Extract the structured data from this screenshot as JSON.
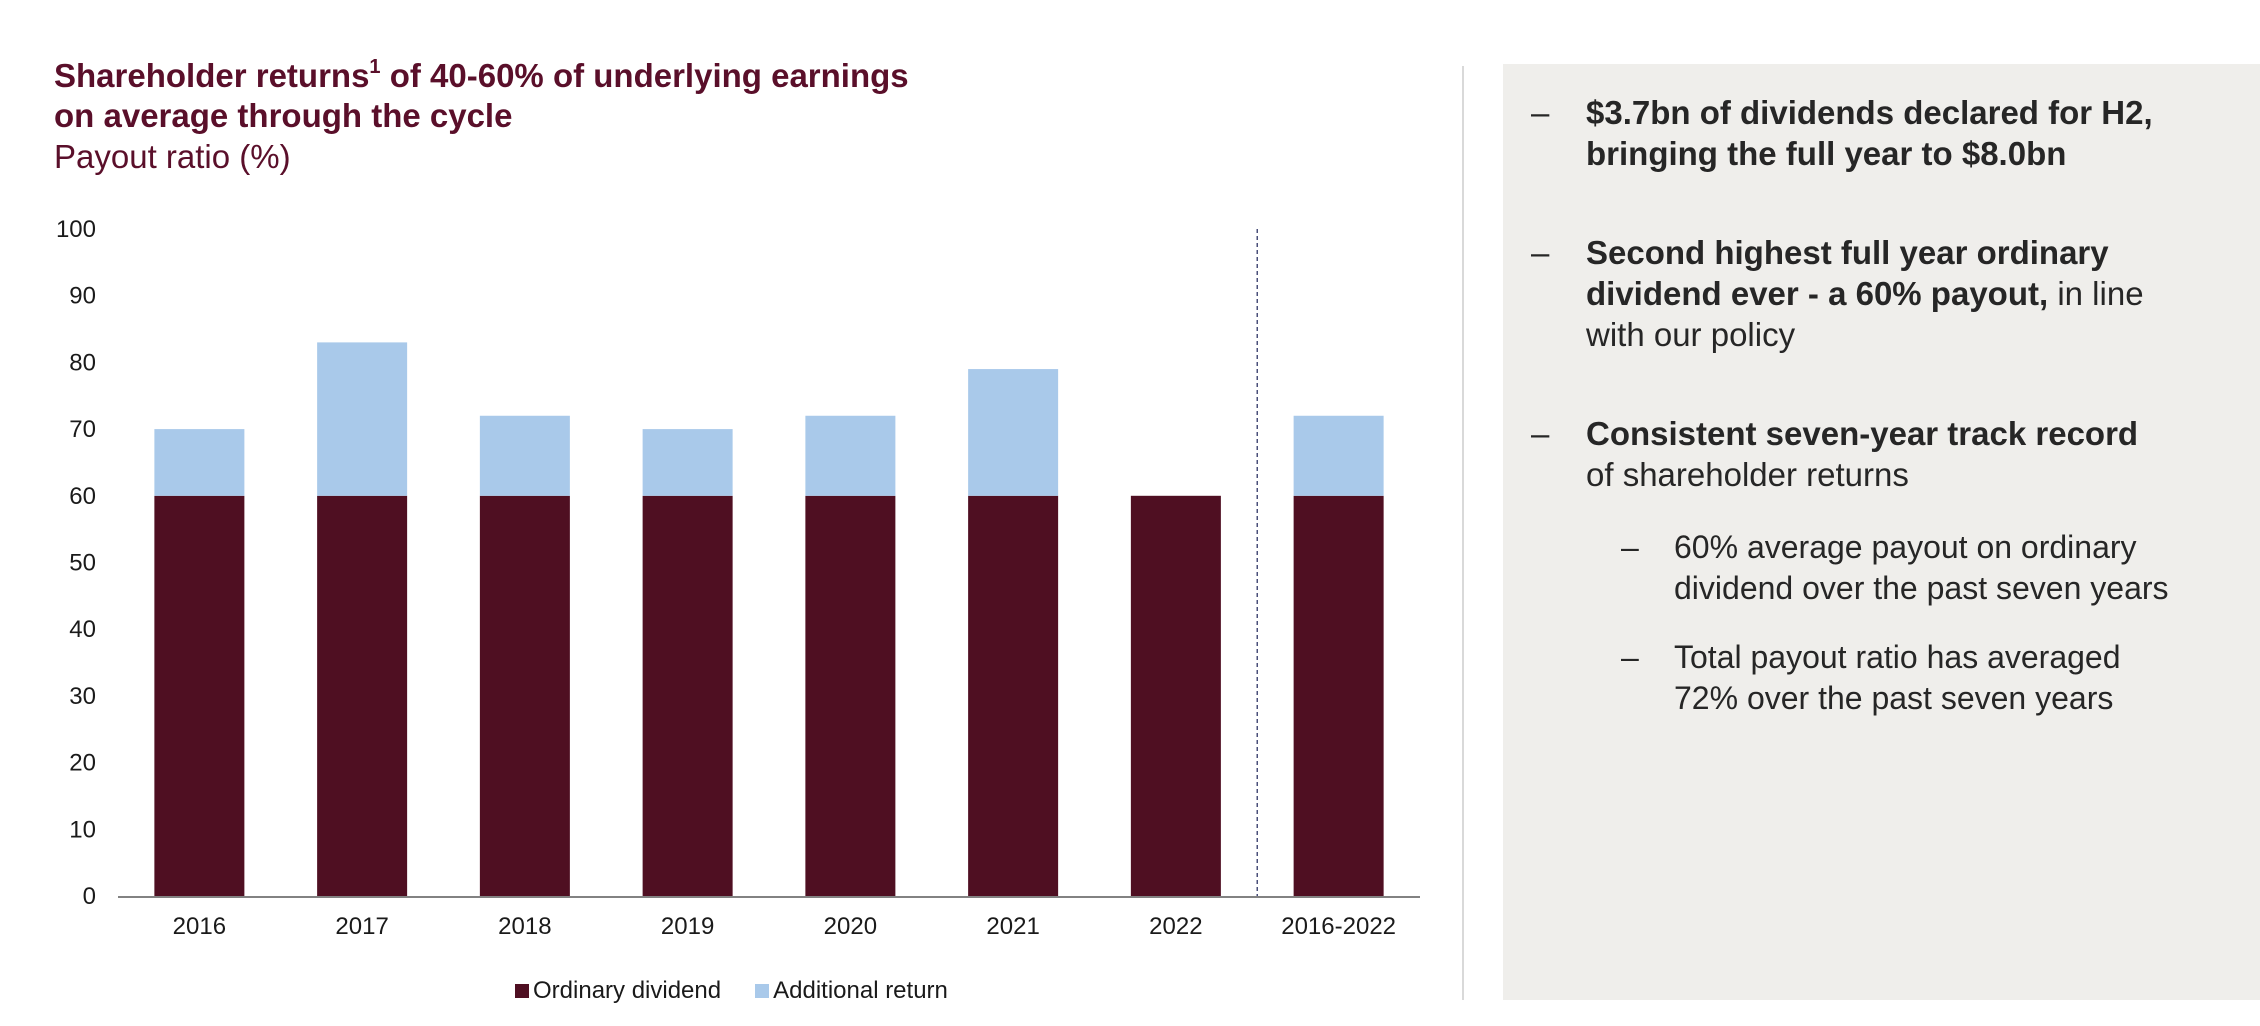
{
  "header": {
    "title_part1": "Shareholder returns",
    "title_sup": "1",
    "title_part2": " of 40-60% of underlying earnings",
    "title_line2": "on average through the cycle",
    "subtitle": "Payout ratio (%)"
  },
  "chart_data": {
    "type": "bar",
    "stacked": true,
    "categories": [
      "2016",
      "2017",
      "2018",
      "2019",
      "2020",
      "2021",
      "2022",
      "2016-2022"
    ],
    "series": [
      {
        "name": "Ordinary dividend",
        "color": "#4f0f22",
        "values": [
          60,
          60,
          60,
          60,
          60,
          60,
          60,
          60
        ]
      },
      {
        "name": "Additional return",
        "color": "#a9c9ea",
        "values": [
          10,
          23,
          12,
          10,
          12,
          19,
          0,
          12
        ]
      }
    ],
    "ylim": [
      0,
      100
    ],
    "yticks": [
      "0",
      "10",
      "20",
      "30",
      "40",
      "50",
      "60",
      "70",
      "80",
      "90",
      "100"
    ],
    "divider_before_category": "2016-2022",
    "grid": false,
    "legend_position": "bottom"
  },
  "panel": {
    "bullets": [
      {
        "dash": "–",
        "bold": "$3.7bn of dividends declared for H2,",
        "bold2": "bringing the full year to $8.0bn"
      },
      {
        "dash": "–",
        "bold": "Second highest full year ordinary",
        "bold2": "dividend ever - a 60% payout,",
        "normal2": " in line",
        "normal3": "with our policy"
      },
      {
        "dash": "–",
        "bold": "Consistent seven-year track record",
        "normal2": "of shareholder returns"
      }
    ],
    "subbullets": [
      {
        "dash": "–",
        "line1": "60% average payout on ordinary",
        "line2": "dividend over the past seven years"
      },
      {
        "dash": "–",
        "line1": "Total payout ratio has averaged",
        "line2": "72% over the past seven years"
      }
    ]
  }
}
